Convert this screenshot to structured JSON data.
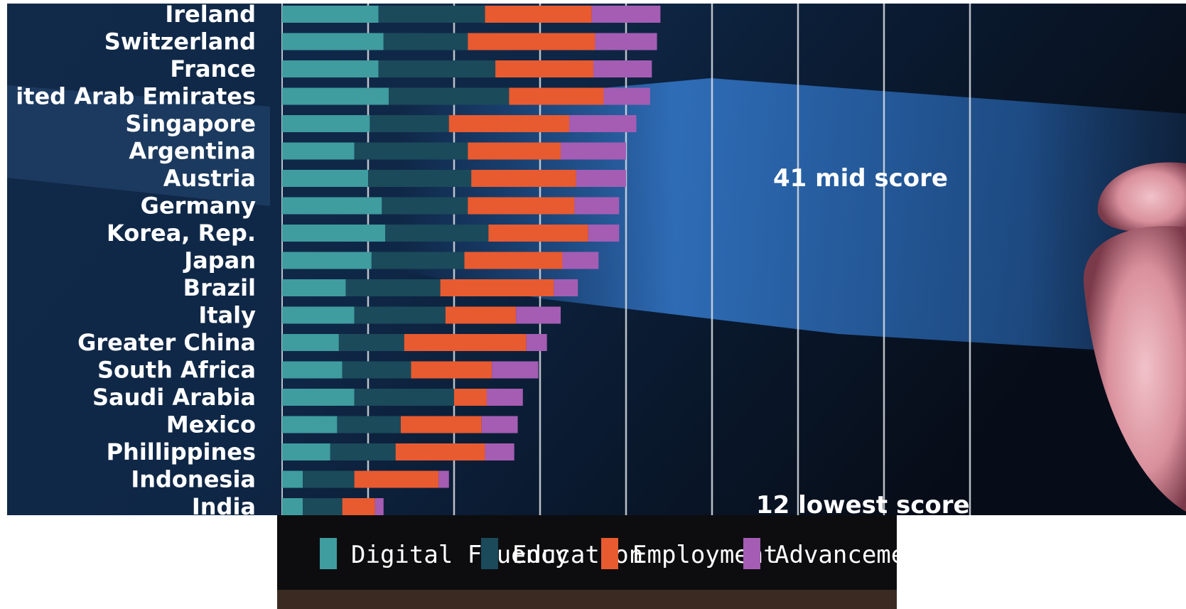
{
  "chart_data": {
    "type": "bar",
    "stacked": true,
    "orientation": "horizontal",
    "categories": [
      "Ireland",
      "Switzerland",
      "France",
      "ited Arab Emirates",
      "Singapore",
      "Argentina",
      "Austria",
      "Germany",
      "Korea, Rep.",
      "Japan",
      "Brazil",
      "Italy",
      "Greater China",
      "South Africa",
      "Saudi Arabia",
      "Mexico",
      "Phillippines",
      "Indonesia",
      "India"
    ],
    "series": [
      {
        "name": "Digital Fluency",
        "color": "#3f9c9f",
        "values": [
          5.6,
          5.9,
          5.6,
          6.2,
          5.1,
          4.2,
          5.0,
          5.8,
          6.0,
          5.2,
          3.7,
          4.2,
          3.3,
          3.5,
          4.2,
          3.2,
          2.8,
          1.2,
          1.2
        ]
      },
      {
        "name": "Education",
        "color": "#1b4a5a",
        "values": [
          6.2,
          4.9,
          6.8,
          7.0,
          4.6,
          6.6,
          6.0,
          5.0,
          6.0,
          5.4,
          5.5,
          5.3,
          3.8,
          4.0,
          5.8,
          3.7,
          3.8,
          3.0,
          2.3
        ]
      },
      {
        "name": "Employment",
        "color": "#e85a30",
        "values": [
          6.2,
          7.4,
          5.7,
          5.5,
          7.0,
          5.4,
          6.1,
          6.2,
          5.8,
          5.7,
          6.6,
          4.1,
          7.1,
          4.7,
          1.9,
          4.7,
          5.2,
          4.9,
          1.9
        ]
      },
      {
        "name": "Advancement",
        "color": "#a45db3",
        "values": [
          4.0,
          3.6,
          3.4,
          2.7,
          3.9,
          3.8,
          2.9,
          2.6,
          1.8,
          2.1,
          1.4,
          2.6,
          1.2,
          2.7,
          2.1,
          2.1,
          1.7,
          0.6,
          0.5
        ]
      }
    ],
    "xlim": [
      0,
      40
    ],
    "grid": true,
    "legend_position": "bottom",
    "annotations": [
      "41 mid score",
      "12 lowest score"
    ]
  }
}
